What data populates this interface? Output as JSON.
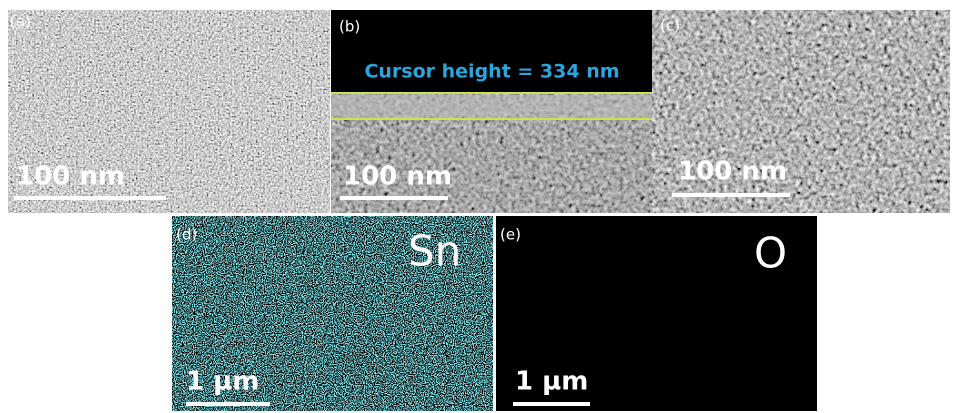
{
  "panels": [
    {
      "label": "(a)",
      "scale_bar": "100 nm"
    },
    {
      "label": "(b)",
      "annotation": "Cursor height = 334 nm",
      "scale_bar": "100 nm"
    },
    {
      "label": "(c)",
      "scale_bar": "100 nm"
    },
    {
      "label": "(d)",
      "element": "Sn",
      "scale_bar": "1 µm"
    },
    {
      "label": "(e)",
      "element": "O",
      "scale_bar": "1 µm"
    }
  ]
}
